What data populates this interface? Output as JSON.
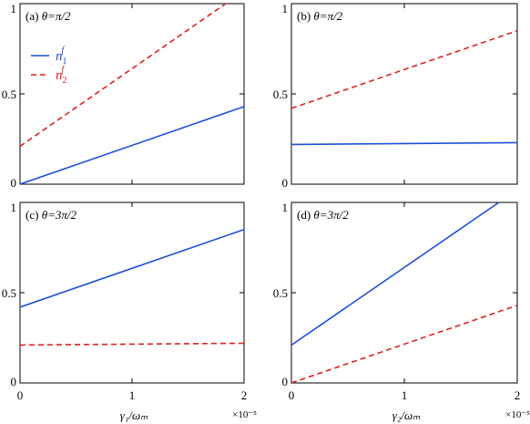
{
  "chart_data": [
    {
      "type": "line",
      "panel": "(a)",
      "theta_label": "θ=π/2",
      "xlim": [
        0,
        2
      ],
      "ylim": [
        0,
        1
      ],
      "x_scale": "×10⁻⁵",
      "yticks": [
        "0",
        "0.5",
        "1"
      ],
      "series": [
        {
          "name": "n₁ᶠ",
          "color": "#1f4fd8",
          "dash": "solid",
          "x": [
            0,
            2
          ],
          "y": [
            0.0,
            0.43
          ]
        },
        {
          "name": "n₂ᶠ",
          "color": "#e0211f",
          "dash": "dashed",
          "x": [
            0,
            2
          ],
          "y": [
            0.21,
            1.07
          ]
        }
      ]
    },
    {
      "type": "line",
      "panel": "(b)",
      "theta_label": "θ=π/2",
      "xlim": [
        0,
        2
      ],
      "ylim": [
        0,
        1
      ],
      "yticks": [
        "0",
        "0.5",
        "1"
      ],
      "series": [
        {
          "color": "#1f4fd8",
          "dash": "solid",
          "x": [
            0,
            2
          ],
          "y": [
            0.22,
            0.23
          ]
        },
        {
          "color": "#e0211f",
          "dash": "dashed",
          "x": [
            0,
            2
          ],
          "y": [
            0.42,
            0.85
          ]
        }
      ]
    },
    {
      "type": "line",
      "panel": "(c)",
      "theta_label": "θ=3π/2",
      "xlim": [
        0,
        2
      ],
      "ylim": [
        0,
        1
      ],
      "xticks": [
        "0",
        "1",
        "2"
      ],
      "yticks": [
        "0",
        "0.5",
        "1"
      ],
      "x_scale": "×10⁻⁵",
      "xlabel": "γ₁/ωₘ",
      "series": [
        {
          "color": "#1f4fd8",
          "dash": "solid",
          "x": [
            0,
            2
          ],
          "y": [
            0.42,
            0.85
          ]
        },
        {
          "color": "#e0211f",
          "dash": "dashed",
          "x": [
            0,
            2
          ],
          "y": [
            0.21,
            0.22
          ]
        }
      ]
    },
    {
      "type": "line",
      "panel": "(d)",
      "theta_label": "θ=3π/2",
      "xlim": [
        0,
        2
      ],
      "ylim": [
        0,
        1
      ],
      "xticks": [
        "0",
        "1",
        "2"
      ],
      "yticks": [
        "0",
        "0.5",
        "1"
      ],
      "x_scale": "×10⁻⁵",
      "xlabel": "γ₂/ωₘ",
      "series": [
        {
          "color": "#1f4fd8",
          "dash": "solid",
          "x": [
            0,
            2
          ],
          "y": [
            0.21,
            1.07
          ]
        },
        {
          "color": "#e0211f",
          "dash": "dashed",
          "x": [
            0,
            2
          ],
          "y": [
            0.0,
            0.43
          ]
        }
      ]
    }
  ],
  "legend": {
    "n1": "n",
    "n1_sub": "1",
    "n1_sup": "f",
    "n2": "n",
    "n2_sub": "2",
    "n2_sup": "f"
  }
}
